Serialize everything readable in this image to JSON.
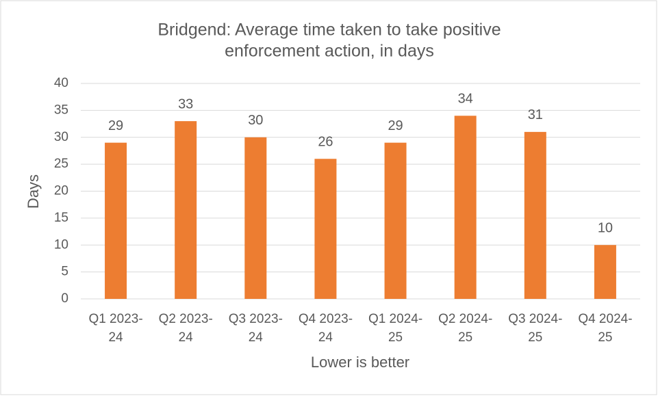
{
  "chart_data": {
    "type": "bar",
    "title": [
      "Bridgend: Average time taken to take positive",
      "enforcement action, in days"
    ],
    "y_axis_label": "Days",
    "x_axis_label": "Lower is better",
    "categories": [
      "Q1 2023-24",
      "Q2 2023-24",
      "Q3 2023-24",
      "Q4 2023-24",
      "Q1 2024-25",
      "Q2 2024-25",
      "Q3 2024-25",
      "Q4 2024-25"
    ],
    "values": [
      29,
      33,
      30,
      26,
      29,
      34,
      31,
      10
    ],
    "color": "#ed7d31",
    "ylim": [
      0,
      40
    ],
    "yticks": [
      0,
      5,
      10,
      15,
      20,
      25,
      30,
      35,
      40
    ],
    "grid": true
  }
}
